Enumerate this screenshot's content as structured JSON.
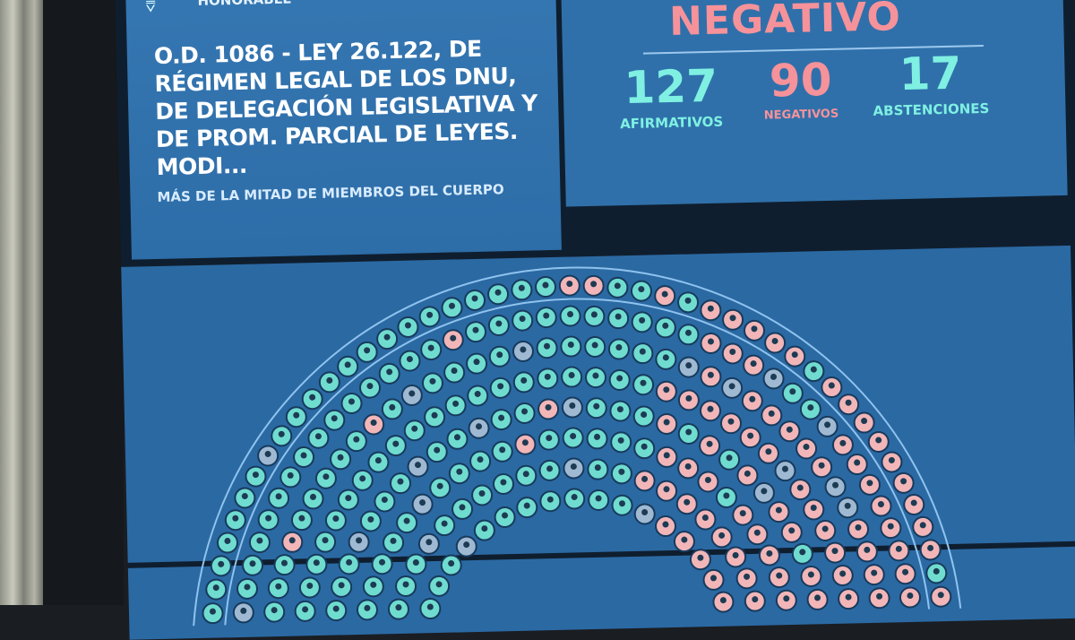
{
  "header": {
    "institution": "HONORABLE",
    "logo": "chamber-logo"
  },
  "motion": {
    "title": "O.D. 1086 - LEY 26.122, DE RÉGIMEN LEGAL DE LOS DNU, DE DELEGACIÓN LEGISLATIVA Y DE PROM. PARCIAL DE LEYES. MODI...",
    "majority": "MÁS DE LA MITAD DE MIEMBROS DEL CUERPO"
  },
  "result": {
    "outcome": "NEGATIVO",
    "counts": [
      {
        "value": "127",
        "label": "AFIRMATIVOS",
        "color": "#7ff0e2"
      },
      {
        "value": "90",
        "label": "NEGATIVOS",
        "color": "#f6929a"
      },
      {
        "value": "17",
        "label": "ABSTENCIONES",
        "color": "#7ff0e2"
      }
    ]
  },
  "seat_colors": {
    "afirmativo": "#6fdccf",
    "negativo": "#f2b6b8",
    "abstencion": "#9fb9d2",
    "seat_ring": "#173a5c"
  }
}
